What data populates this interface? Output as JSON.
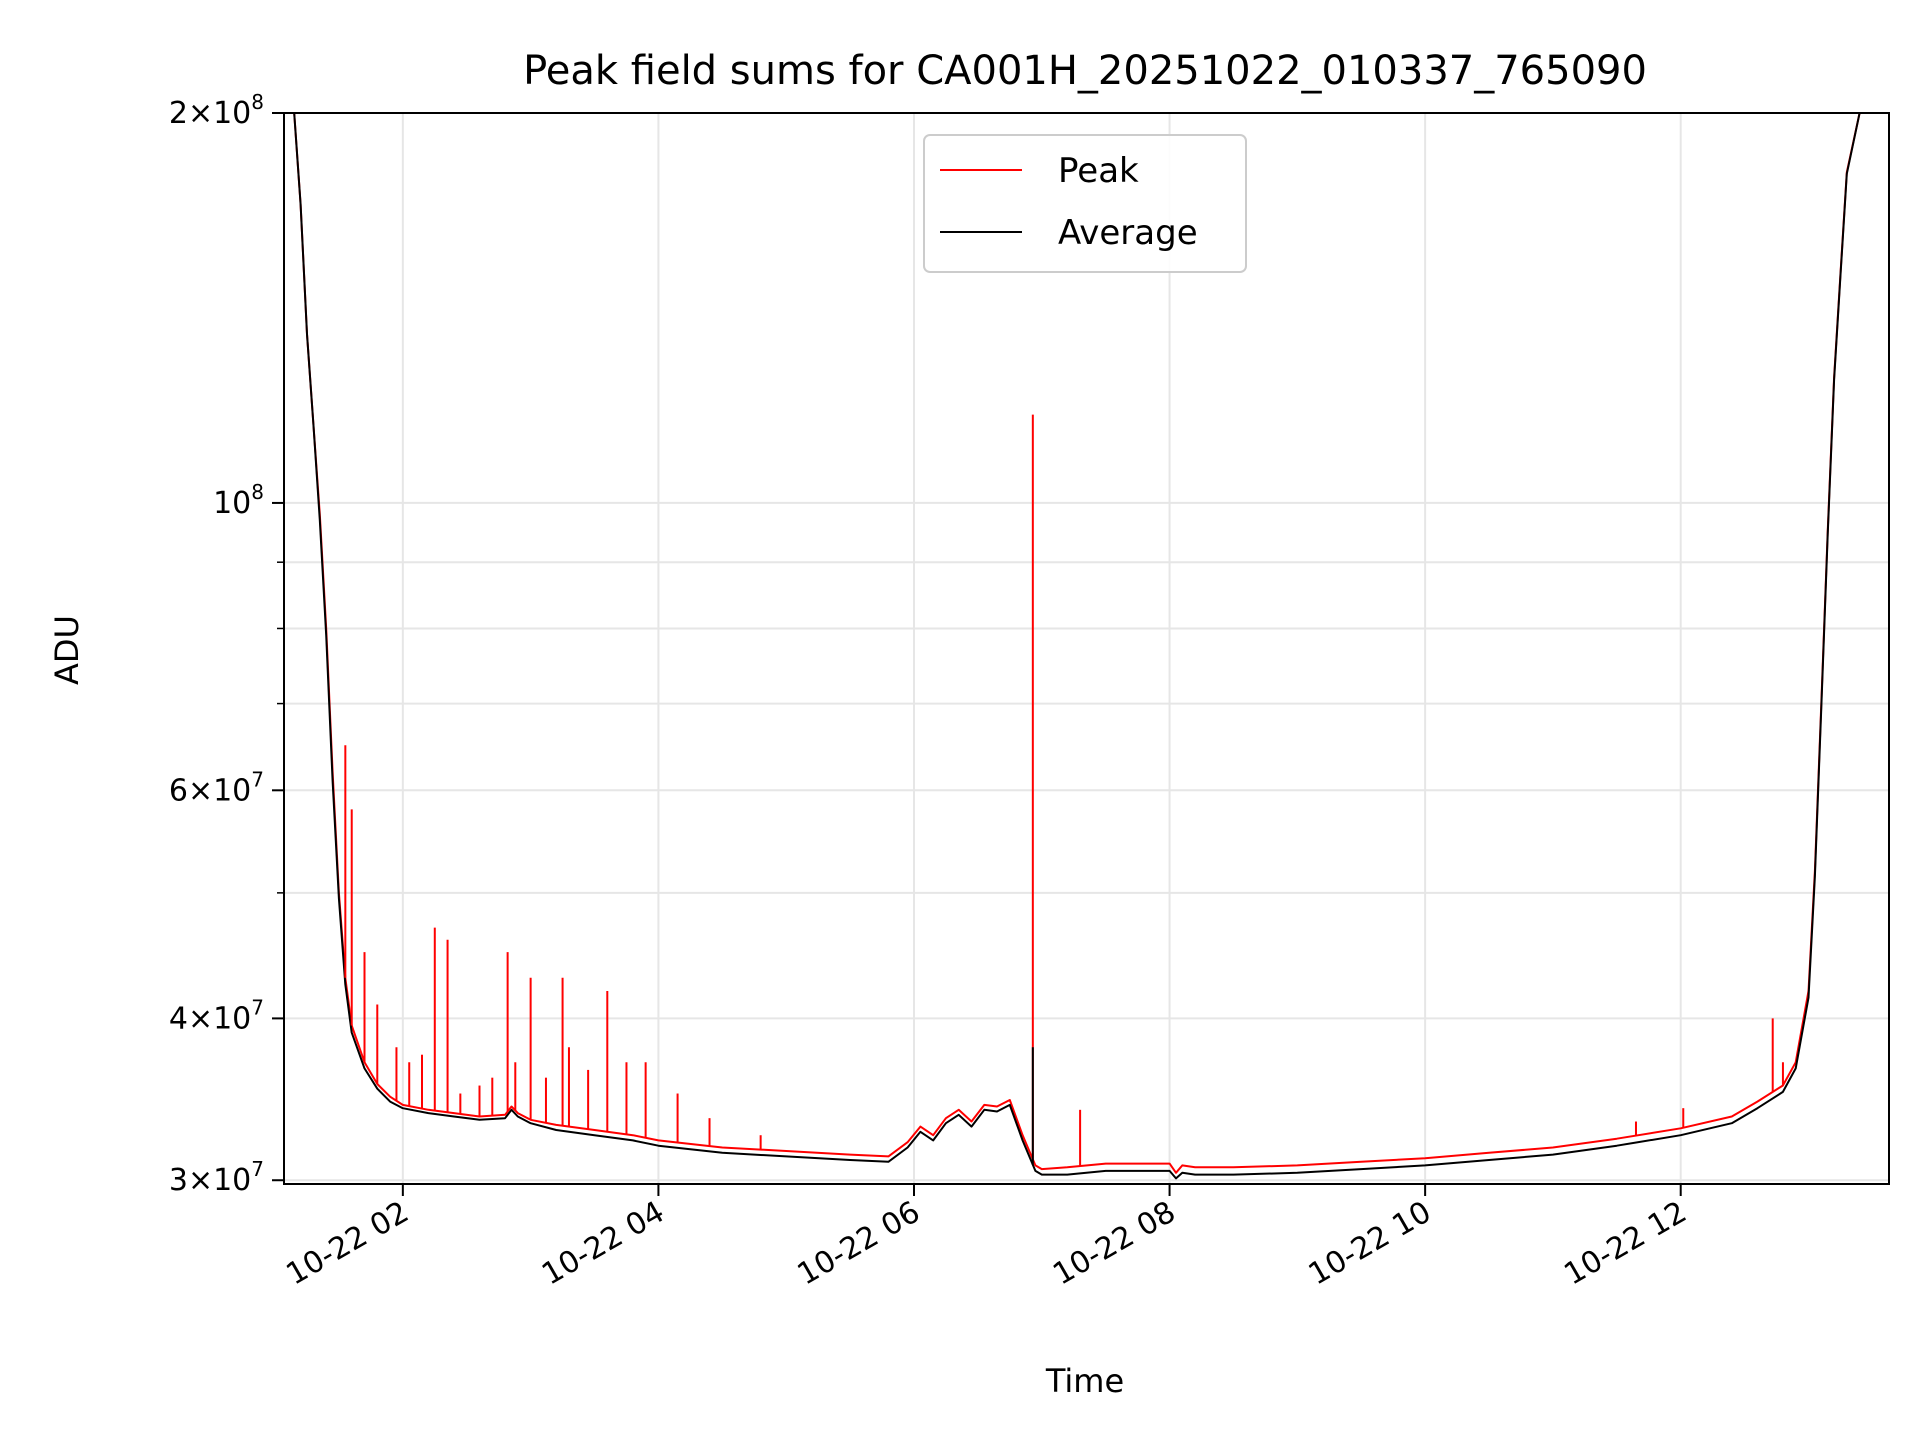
{
  "chart_data": {
    "type": "line",
    "title": "Peak field sums for CA001H_20251022_010337_765090",
    "xlabel": "Time",
    "ylabel": "ADU",
    "yscale": "log",
    "grid": true,
    "legend_position": "top-center",
    "x_unit": "hours since 2025-10-22 00:00",
    "xlim": [
      1.07,
      13.63
    ],
    "ylim": [
      29800000,
      200000000
    ],
    "x_ticks": [
      {
        "value": 2,
        "label": "10-22 02"
      },
      {
        "value": 4,
        "label": "10-22 04"
      },
      {
        "value": 6,
        "label": "10-22 06"
      },
      {
        "value": 8,
        "label": "10-22 08"
      },
      {
        "value": 10,
        "label": "10-22 10"
      },
      {
        "value": 12,
        "label": "10-22 12"
      }
    ],
    "y_ticks": [
      {
        "value": 30000000,
        "mantissa": "3",
        "exponent": "7"
      },
      {
        "value": 40000000,
        "mantissa": "4",
        "exponent": "7"
      },
      {
        "value": 60000000,
        "mantissa": "6",
        "exponent": "7"
      },
      {
        "value": 100000000,
        "mantissa": "",
        "exponent": "8"
      },
      {
        "value": 200000000,
        "mantissa": "2",
        "exponent": "8"
      }
    ],
    "y_minor_ticks": [
      50000000,
      70000000,
      80000000,
      90000000
    ],
    "series": [
      {
        "name": "Peak",
        "color": "#ff0000",
        "x": [
          1.07,
          1.15,
          1.2,
          1.25,
          1.3,
          1.35,
          1.4,
          1.45,
          1.5,
          1.55,
          1.6,
          1.7,
          1.8,
          1.9,
          2.0,
          2.2,
          2.4,
          2.6,
          2.8,
          2.85,
          2.9,
          3.0,
          3.2,
          3.5,
          3.8,
          4.0,
          4.5,
          5.0,
          5.5,
          5.8,
          5.95,
          6.05,
          6.15,
          6.25,
          6.35,
          6.45,
          6.55,
          6.65,
          6.75,
          6.85,
          6.95,
          7.0,
          7.2,
          7.5,
          8.0,
          8.05,
          8.1,
          8.2,
          8.5,
          9.0,
          9.5,
          10.0,
          10.5,
          11.0,
          11.5,
          12.0,
          12.4,
          12.6,
          12.8,
          12.9,
          13.0,
          13.05,
          13.1,
          13.15,
          13.2,
          13.25,
          13.3,
          13.4,
          13.5,
          13.63
        ],
        "y": [
          200000000,
          200000000,
          170000000,
          135000000,
          115000000,
          98000000,
          80000000,
          62000000,
          50000000,
          43000000,
          39500000,
          37000000,
          35600000,
          34800000,
          34300000,
          34000000,
          33800000,
          33600000,
          33700000,
          34200000,
          33800000,
          33400000,
          33100000,
          32800000,
          32500000,
          32200000,
          31800000,
          31600000,
          31400000,
          31300000,
          32100000,
          33000000,
          32500000,
          33500000,
          34000000,
          33300000,
          34300000,
          34200000,
          34600000,
          32500000,
          30800000,
          30600000,
          30700000,
          30900000,
          30900000,
          30400000,
          30800000,
          30700000,
          30700000,
          30800000,
          31000000,
          31200000,
          31500000,
          31800000,
          32300000,
          32900000,
          33600000,
          34500000,
          35500000,
          37000000,
          42000000,
          52000000,
          70000000,
          95000000,
          125000000,
          150000000,
          180000000,
          200000000,
          200000000,
          200000000
        ]
      },
      {
        "name": "Average",
        "color": "#000000",
        "x": [
          1.07,
          1.15,
          1.2,
          1.25,
          1.3,
          1.35,
          1.4,
          1.45,
          1.5,
          1.55,
          1.6,
          1.7,
          1.8,
          1.9,
          2.0,
          2.2,
          2.4,
          2.6,
          2.8,
          2.85,
          2.9,
          3.0,
          3.2,
          3.5,
          3.8,
          4.0,
          4.5,
          5.0,
          5.5,
          5.8,
          5.95,
          6.05,
          6.15,
          6.25,
          6.35,
          6.45,
          6.55,
          6.65,
          6.75,
          6.85,
          6.95,
          7.0,
          7.2,
          7.5,
          8.0,
          8.05,
          8.1,
          8.2,
          8.5,
          9.0,
          9.5,
          10.0,
          10.5,
          11.0,
          11.5,
          12.0,
          12.4,
          12.6,
          12.8,
          12.9,
          13.0,
          13.05,
          13.1,
          13.15,
          13.2,
          13.25,
          13.3,
          13.4,
          13.5,
          13.63
        ],
        "y": [
          200000000,
          200000000,
          170000000,
          135000000,
          115000000,
          97000000,
          79000000,
          61000000,
          49500000,
          42500000,
          39000000,
          36600000,
          35300000,
          34500000,
          34100000,
          33800000,
          33600000,
          33400000,
          33500000,
          34000000,
          33600000,
          33200000,
          32800000,
          32500000,
          32200000,
          31900000,
          31500000,
          31300000,
          31100000,
          31000000,
          31800000,
          32700000,
          32200000,
          33200000,
          33700000,
          33000000,
          34000000,
          33900000,
          34300000,
          32200000,
          30500000,
          30300000,
          30300000,
          30500000,
          30500000,
          30100000,
          30400000,
          30300000,
          30300000,
          30400000,
          30600000,
          30800000,
          31100000,
          31400000,
          31900000,
          32500000,
          33200000,
          34100000,
          35100000,
          36600000,
          41500000,
          51500000,
          69500000,
          94500000,
          124500000,
          149500000,
          179500000,
          200000000,
          200000000,
          200000000
        ]
      }
    ],
    "spikes": [
      {
        "series": "Peak",
        "x": 1.55,
        "y": 65000000
      },
      {
        "series": "Peak",
        "x": 1.6,
        "y": 58000000
      },
      {
        "series": "Peak",
        "x": 1.7,
        "y": 45000000
      },
      {
        "series": "Peak",
        "x": 1.8,
        "y": 41000000
      },
      {
        "series": "Peak",
        "x": 1.95,
        "y": 38000000
      },
      {
        "series": "Peak",
        "x": 2.05,
        "y": 37000000
      },
      {
        "series": "Peak",
        "x": 2.15,
        "y": 37500000
      },
      {
        "series": "Peak",
        "x": 2.25,
        "y": 47000000
      },
      {
        "series": "Peak",
        "x": 2.35,
        "y": 46000000
      },
      {
        "series": "Peak",
        "x": 2.45,
        "y": 35000000
      },
      {
        "series": "Peak",
        "x": 2.6,
        "y": 35500000
      },
      {
        "series": "Peak",
        "x": 2.7,
        "y": 36000000
      },
      {
        "series": "Peak",
        "x": 2.82,
        "y": 45000000
      },
      {
        "series": "Peak",
        "x": 2.88,
        "y": 37000000
      },
      {
        "series": "Peak",
        "x": 3.0,
        "y": 43000000
      },
      {
        "series": "Peak",
        "x": 3.12,
        "y": 36000000
      },
      {
        "series": "Peak",
        "x": 3.25,
        "y": 43000000
      },
      {
        "series": "Peak",
        "x": 3.3,
        "y": 38000000
      },
      {
        "series": "Peak",
        "x": 3.45,
        "y": 36500000
      },
      {
        "series": "Peak",
        "x": 3.6,
        "y": 42000000
      },
      {
        "series": "Peak",
        "x": 3.75,
        "y": 37000000
      },
      {
        "series": "Peak",
        "x": 3.9,
        "y": 37000000
      },
      {
        "series": "Peak",
        "x": 4.15,
        "y": 35000000
      },
      {
        "series": "Peak",
        "x": 4.4,
        "y": 33500000
      },
      {
        "series": "Peak",
        "x": 4.8,
        "y": 32500000
      },
      {
        "series": "Peak",
        "x": 6.93,
        "y": 117000000
      },
      {
        "series": "Average",
        "x": 6.93,
        "y": 38000000
      },
      {
        "series": "Peak",
        "x": 7.3,
        "y": 34000000
      },
      {
        "series": "Peak",
        "x": 11.65,
        "y": 33300000
      },
      {
        "series": "Peak",
        "x": 12.02,
        "y": 34100000
      },
      {
        "series": "Peak",
        "x": 12.72,
        "y": 40000000
      },
      {
        "series": "Peak",
        "x": 12.8,
        "y": 37000000
      }
    ]
  }
}
